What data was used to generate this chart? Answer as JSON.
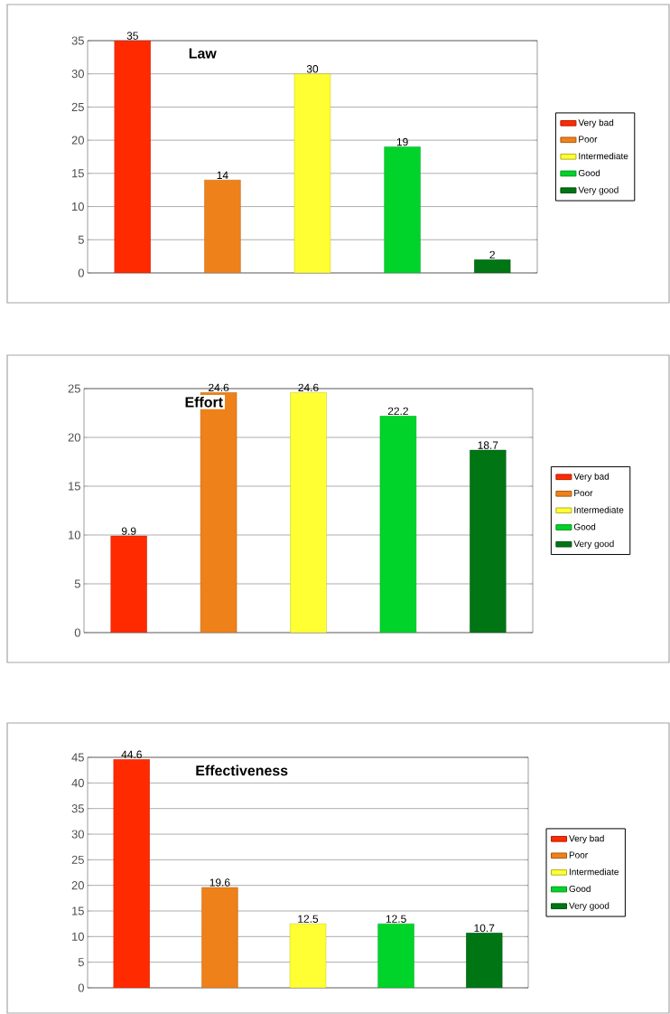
{
  "chart_data": [
    {
      "type": "bar",
      "title": "Law",
      "categories": [
        null,
        null,
        null,
        null,
        null
      ],
      "series": [
        {
          "name": "Very bad",
          "color": "#ff2a00",
          "values": [
            35,
            null,
            null,
            null,
            null
          ]
        },
        {
          "name": "Poor",
          "color": "#ee8119",
          "values": [
            null,
            14,
            null,
            null,
            null
          ]
        },
        {
          "name": "Intermediate",
          "color": "#ffff33",
          "values": [
            null,
            null,
            30,
            null,
            null
          ]
        },
        {
          "name": "Good",
          "color": "#00d42a",
          "values": [
            null,
            null,
            null,
            19,
            null
          ]
        },
        {
          "name": "Very good",
          "color": "#007514",
          "values": [
            null,
            null,
            null,
            null,
            2
          ]
        }
      ],
      "ylim": [
        0,
        35
      ],
      "yticks": [
        0,
        5,
        10,
        15,
        20,
        25,
        30,
        35
      ],
      "grid": "y",
      "legend": "right",
      "data_labels": true,
      "tick_labels": "y"
    },
    {
      "type": "bar",
      "title": "Effort",
      "categories": [
        null,
        null,
        null,
        null,
        null
      ],
      "series": [
        {
          "name": "Very bad",
          "color": "#ff2a00",
          "values": [
            9.9,
            null,
            null,
            null,
            null
          ]
        },
        {
          "name": "Poor",
          "color": "#ee8119",
          "values": [
            null,
            24.6,
            null,
            null,
            null
          ]
        },
        {
          "name": "Intermediate",
          "color": "#ffff33",
          "values": [
            null,
            null,
            24.6,
            null,
            null
          ]
        },
        {
          "name": "Good",
          "color": "#00d42a",
          "values": [
            null,
            null,
            null,
            22.2,
            null
          ]
        },
        {
          "name": "Very good",
          "color": "#007514",
          "values": [
            null,
            null,
            null,
            null,
            18.7
          ]
        }
      ],
      "ylim": [
        0,
        25
      ],
      "yticks": [
        0,
        5,
        10,
        15,
        20,
        25
      ],
      "grid": "y",
      "legend": "right",
      "data_labels": true,
      "tick_labels": "y"
    },
    {
      "type": "bar",
      "title": "Effectiveness",
      "categories": [
        null,
        null,
        null,
        null,
        null
      ],
      "series": [
        {
          "name": "Very bad",
          "color": "#ff2a00",
          "values": [
            44.6,
            null,
            null,
            null,
            null
          ]
        },
        {
          "name": "Poor",
          "color": "#ee8119",
          "values": [
            null,
            19.6,
            null,
            null,
            null
          ]
        },
        {
          "name": "Intermediate",
          "color": "#ffff33",
          "values": [
            null,
            null,
            12.5,
            null,
            null
          ]
        },
        {
          "name": "Good",
          "color": "#00d42a",
          "values": [
            null,
            null,
            null,
            12.5,
            null
          ]
        },
        {
          "name": "Very good",
          "color": "#007514",
          "values": [
            null,
            null,
            null,
            null,
            10.7
          ]
        }
      ],
      "ylim": [
        0,
        45
      ],
      "yticks": [
        0,
        5,
        10,
        15,
        20,
        25,
        30,
        35,
        40,
        45
      ],
      "grid": "y",
      "legend": "right",
      "data_labels": true,
      "tick_labels": "y"
    }
  ]
}
